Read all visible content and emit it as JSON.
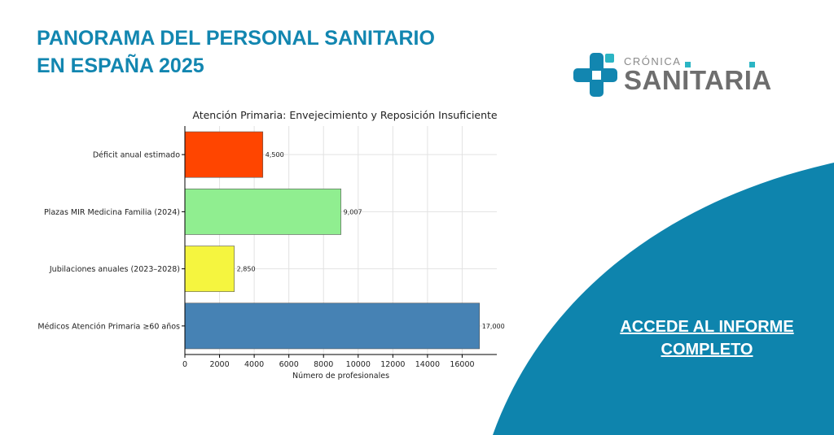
{
  "header": {
    "title_line1": "PANORAMA DEL PERSONAL SANITARIO",
    "title_line2": "EN ESPAÑA 2025"
  },
  "logo": {
    "small_text": "CRÓNICA",
    "big_text": "SANITARIA",
    "icon": "medical-cross-icon"
  },
  "cta": {
    "line1": "ACCEDE AL INFORME",
    "line2": "COMPLETO"
  },
  "colors": {
    "brand_blue": "#1286b0",
    "wave_blue": "#0e84ad",
    "logo_teal": "#2bb5c4",
    "logo_gray": "#6e6e6e"
  },
  "chart_data": {
    "type": "bar",
    "orientation": "horizontal",
    "title": "Atención Primaria: Envejecimiento y Reposición Insuficiente",
    "xlabel": "Número de profesionales",
    "ylabel": "",
    "xlim": [
      0,
      18000
    ],
    "xticks": [
      0,
      2000,
      4000,
      6000,
      8000,
      10000,
      12000,
      14000,
      16000
    ],
    "grid": true,
    "categories": [
      "Déficit anual estimado",
      "Plazas MIR Medicina Familia (2024)",
      "Jubilaciones anuales (2023–2028)",
      "Médicos Atención Primaria ≥60 años"
    ],
    "values": [
      4500,
      9007,
      2850,
      17000
    ],
    "value_labels": [
      "4,500",
      "9,007",
      "2,850",
      "17,000"
    ],
    "bar_colors": [
      "#ff4500",
      "#90ee90",
      "#f5f53f",
      "#4682b4"
    ]
  }
}
